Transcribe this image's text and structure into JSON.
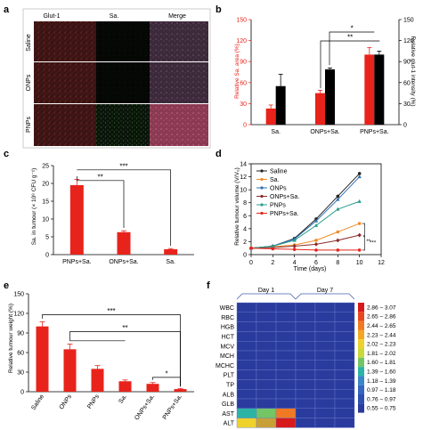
{
  "panels": {
    "a": {
      "label": "a",
      "columns": [
        "Glut-1",
        "Sa.",
        "Merge"
      ],
      "rows": [
        "Saline",
        "ONPs",
        "PNPs"
      ]
    },
    "b": {
      "label": "b",
      "chart_data": {
        "type": "bar",
        "categories": [
          "Sa.",
          "ONPs+Sa.",
          "PNPs+Sa."
        ],
        "series": [
          {
            "values": [
              23,
              45,
              100
            ],
            "errors": [
              5,
              4,
              10
            ],
            "color": "#e8231b"
          },
          {
            "values": [
              55,
              79,
              100
            ],
            "errors": [
              17,
              2,
              5
            ],
            "color": "#000000"
          }
        ],
        "ylabel": "Relative Sa. area (%)",
        "y2label": "Relative glut-1 intensity (%)",
        "ylim": [
          0,
          150
        ],
        "yticks": [
          "0",
          "30",
          "60",
          "90",
          "120",
          "150"
        ],
        "significance": [
          "*",
          "**"
        ]
      }
    },
    "c": {
      "label": "c",
      "chart_data": {
        "type": "bar",
        "categories": [
          "PNPs+Sa.",
          "ONPs+Sa.",
          "Sa."
        ],
        "values": [
          19.5,
          6.3,
          1.5
        ],
        "errors": [
          1.6,
          0.4,
          0.2
        ],
        "ylabel": "Sa. in tumour (× 10⁸ CFU g⁻¹)",
        "ylim": [
          0,
          25
        ],
        "yticks": [
          "0",
          "5",
          "10",
          "15",
          "20",
          "25"
        ],
        "significance": [
          "**",
          "***"
        ]
      }
    },
    "d": {
      "label": "d",
      "chart_data": {
        "type": "line",
        "x": [
          0,
          2,
          4,
          6,
          8,
          10
        ],
        "series": [
          {
            "name": "Saline",
            "color": "#222222",
            "marker": "circle",
            "values": [
              1,
              1.3,
              2.5,
              5.5,
              9,
              12.5
            ]
          },
          {
            "name": "Sa.",
            "color": "#f28c28",
            "marker": "circle",
            "values": [
              1,
              1.2,
              1.5,
              2.2,
              3.5,
              4.8
            ]
          },
          {
            "name": "ONPs",
            "color": "#2f6fb3",
            "marker": "triangle",
            "values": [
              1,
              1.3,
              2.4,
              5.2,
              8.5,
              12
            ]
          },
          {
            "name": "ONPs+Sa.",
            "color": "#8b2d2d",
            "marker": "diamond",
            "values": [
              1,
              1.1,
              1.3,
              1.6,
              2.2,
              3
            ]
          },
          {
            "name": "PNPs",
            "color": "#2a9d8f",
            "marker": "triangle",
            "values": [
              1,
              1.3,
              2.2,
              4.5,
              7,
              8.2
            ]
          },
          {
            "name": "PNPs+Sa.",
            "color": "#e8231b",
            "marker": "circle",
            "values": [
              1,
              0.9,
              0.8,
              0.7,
              0.7,
              0.7
            ]
          }
        ],
        "xlabel": "Time (days)",
        "ylabel": "Relative tumour volume (V/V₀)",
        "xlim": [
          0,
          12
        ],
        "ylim": [
          0,
          14
        ],
        "xticks": [
          "0",
          "2",
          "4",
          "6",
          "8",
          "10",
          "12"
        ],
        "yticks": [
          "0",
          "2",
          "4",
          "6",
          "8",
          "10",
          "12",
          "14"
        ],
        "significance": [
          "*",
          "**",
          "***"
        ]
      }
    },
    "e": {
      "label": "e",
      "chart_data": {
        "type": "bar",
        "categories": [
          "Saline",
          "ONPs",
          "PNPs",
          "Sa.",
          "ONPs+Sa.",
          "PNPs+Sa."
        ],
        "values": [
          100,
          65,
          35,
          16,
          12,
          4
        ],
        "errors": [
          7,
          8,
          5,
          2,
          2,
          1
        ],
        "ylabel": "Relative tumour weight (%)",
        "ylim": [
          0,
          150
        ],
        "yticks": [
          "0",
          "30",
          "60",
          "90",
          "120",
          "150"
        ],
        "significance": [
          "***",
          "**",
          "*"
        ]
      }
    },
    "f": {
      "label": "f",
      "chart_data": {
        "type": "heatmap",
        "groups": [
          "Day 1",
          "Day 7"
        ],
        "rows": [
          "WBC",
          "RBC",
          "HGB",
          "HCT",
          "MCV",
          "MCH",
          "MCHC",
          "PLT",
          "TP",
          "ALB",
          "GLB",
          "AST",
          "ALT"
        ],
        "legend": [
          "2.86 – 3.07",
          "2.65 – 2.86",
          "2.44 – 2.65",
          "2.23 – 2.44",
          "2.02 – 2.23",
          "1.81 – 2.02",
          "1.60 – 1.81",
          "1.39 – 1.60",
          "1.18 – 1.39",
          "0.97 – 1.18",
          "0.76 – 0.97",
          "0.55 – 0.75"
        ],
        "legend_colors": [
          "#d7191c",
          "#e8481f",
          "#f07a23",
          "#f5a623",
          "#efd12b",
          "#c8d938",
          "#74c565",
          "#2db3a6",
          "#3b86c8",
          "#3566c0",
          "#2d4fae",
          "#2a3b9e"
        ],
        "special": [
          {
            "row": 11,
            "cols": [
              "#2db3a6",
              "#74c565",
              "#f07a23"
            ]
          },
          {
            "row": 12,
            "cols": [
              "#efd12b",
              "#c8a038",
              "#d7191c"
            ]
          }
        ]
      }
    }
  }
}
